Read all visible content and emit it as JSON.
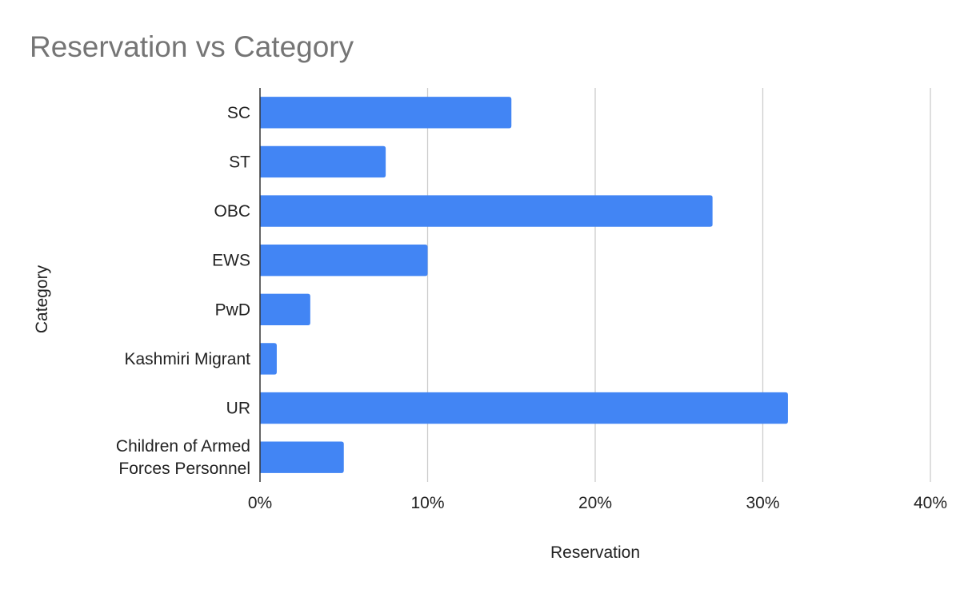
{
  "chart_data": {
    "type": "bar",
    "orientation": "horizontal",
    "title": "Reservation vs Category",
    "xlabel": "Reservation",
    "ylabel": "Category",
    "categories": [
      "SC",
      "ST",
      "OBC",
      "EWS",
      "PwD",
      "Kashmiri Migrant",
      "UR",
      "Children of Armed Forces Personnel"
    ],
    "category_lines": [
      [
        "SC"
      ],
      [
        "ST"
      ],
      [
        "OBC"
      ],
      [
        "EWS"
      ],
      [
        "PwD"
      ],
      [
        "Kashmiri Migrant"
      ],
      [
        "UR"
      ],
      [
        "Children of Armed",
        "Forces Personnel"
      ]
    ],
    "values": [
      15,
      7.5,
      27,
      10,
      3,
      1,
      31.5,
      5
    ],
    "value_unit": "%",
    "xlim": [
      0,
      40
    ],
    "xticks": [
      0,
      10,
      20,
      30,
      40
    ],
    "xtick_labels": [
      "0%",
      "10%",
      "20%",
      "30%",
      "40%"
    ],
    "grid": "vertical",
    "legend": "none",
    "bar_color": "#4285f4",
    "grid_color": "#cccccc",
    "axis_color": "#333333",
    "title_color": "#757575",
    "text_color": "#222222"
  }
}
